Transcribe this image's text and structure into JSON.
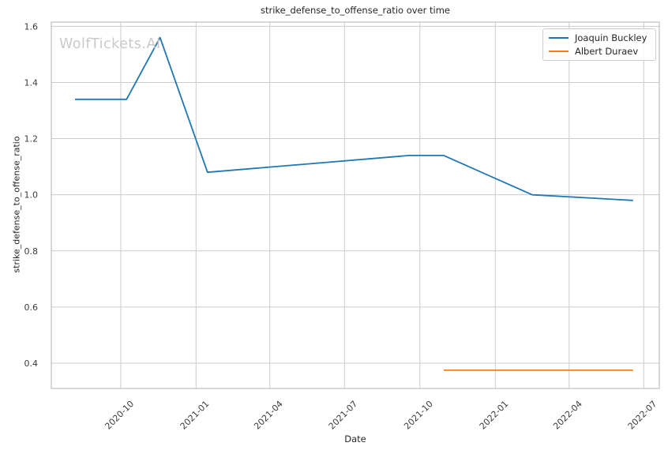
{
  "watermark": "WolfTickets.AI",
  "colors": {
    "background": "#ffffff",
    "grid": "#cccccc",
    "spine": "#bdbdbd",
    "text": "#3b3b3b",
    "title_text": "#262626",
    "watermark": "#c9c9c9",
    "series_blue": "#1f77b4",
    "series_orange": "#ff7f0e"
  },
  "chart_data": {
    "type": "line",
    "title": "strike_defense_to_offense_ratio over time",
    "xlabel": "Date",
    "ylabel": "strike_defense_to_offense_ratio",
    "grid": true,
    "legend_position": "upper right",
    "x_tick_labels": [
      "2020-10",
      "2021-01",
      "2021-04",
      "2021-07",
      "2021-10",
      "2022-01",
      "2022-04",
      "2022-07"
    ],
    "y_ticks": [
      0.4,
      0.6,
      0.8,
      1.0,
      1.2,
      1.4,
      1.6
    ],
    "xlim_dates": [
      "2020-07-08",
      "2022-07-20"
    ],
    "ylim": [
      0.31,
      1.615
    ],
    "series": [
      {
        "name": "Joaquin Buckley",
        "color": "#1f77b4",
        "points": [
          {
            "date": "2020-08-06",
            "value": 1.34
          },
          {
            "date": "2020-10-08",
            "value": 1.34
          },
          {
            "date": "2020-11-18",
            "value": 1.56
          },
          {
            "date": "2021-01-15",
            "value": 1.08
          },
          {
            "date": "2021-09-18",
            "value": 1.14
          },
          {
            "date": "2021-10-30",
            "value": 1.14
          },
          {
            "date": "2022-02-15",
            "value": 1.0
          },
          {
            "date": "2022-06-18",
            "value": 0.98
          }
        ]
      },
      {
        "name": "Albert Duraev",
        "color": "#ff7f0e",
        "points": [
          {
            "date": "2021-10-30",
            "value": 0.375
          },
          {
            "date": "2022-06-18",
            "value": 0.375
          }
        ]
      }
    ]
  }
}
